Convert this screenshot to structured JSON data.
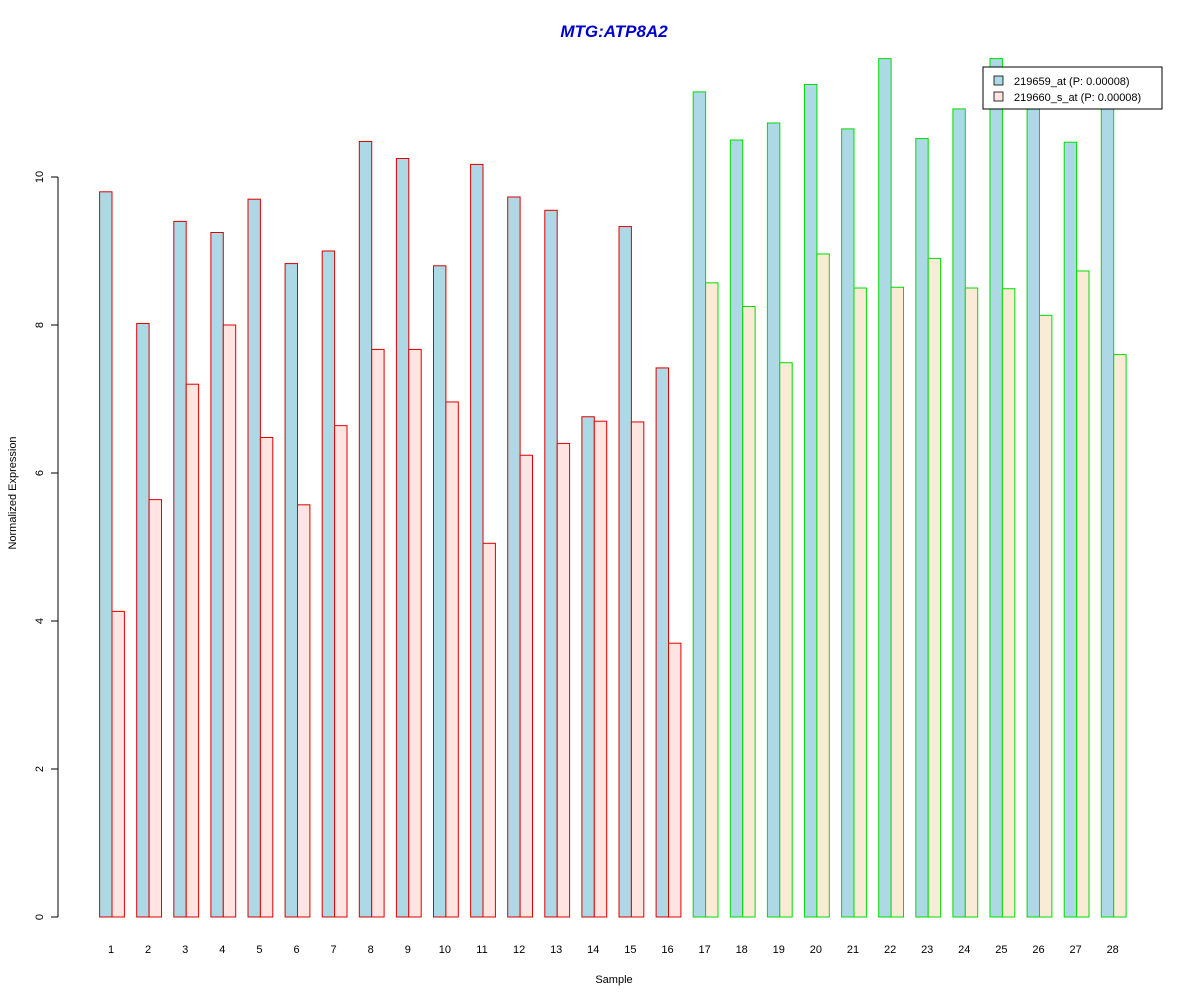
{
  "chart_data": {
    "type": "bar",
    "title": "MTG:ATP8A2",
    "xlabel": "Sample",
    "ylabel": "Normalized Expression",
    "ylim": [
      0,
      11.6
    ],
    "yticks": [
      0,
      2,
      4,
      6,
      8,
      10
    ],
    "grid": false,
    "legend_position": "top-right",
    "categories": [
      "1",
      "2",
      "3",
      "4",
      "5",
      "6",
      "7",
      "8",
      "9",
      "10",
      "11",
      "12",
      "13",
      "14",
      "15",
      "16",
      "17",
      "18",
      "19",
      "20",
      "21",
      "22",
      "23",
      "24",
      "25",
      "26",
      "27",
      "28"
    ],
    "series": [
      {
        "name": "219659_at (P: 0.00008)",
        "values": [
          9.8,
          8.02,
          9.4,
          9.25,
          9.7,
          8.83,
          9.0,
          10.48,
          10.25,
          8.8,
          10.17,
          9.73,
          9.55,
          6.76,
          9.33,
          7.42,
          11.15,
          10.5,
          10.73,
          11.25,
          10.65,
          11.6,
          10.52,
          10.92,
          11.6,
          11.0,
          10.47,
          11.0
        ],
        "fill": "#add8e6"
      },
      {
        "name": "219660_s_at (P: 0.00008)",
        "values": [
          4.13,
          5.64,
          7.2,
          8.0,
          6.48,
          5.57,
          6.64,
          7.67,
          7.67,
          6.96,
          5.05,
          6.24,
          6.4,
          6.7,
          6.69,
          3.7,
          8.57,
          8.25,
          7.49,
          8.96,
          8.5,
          8.51,
          8.9,
          8.5,
          8.49,
          8.13,
          8.73,
          7.6
        ],
        "fill_group1": "#ffe4e1",
        "fill_group2": "#faebd7"
      }
    ],
    "group_border_colors": {
      "1-16": "#dd0000",
      "17-28": "#00dd00"
    },
    "colors": {
      "title": "#0000cc",
      "axis": "#000000"
    }
  }
}
